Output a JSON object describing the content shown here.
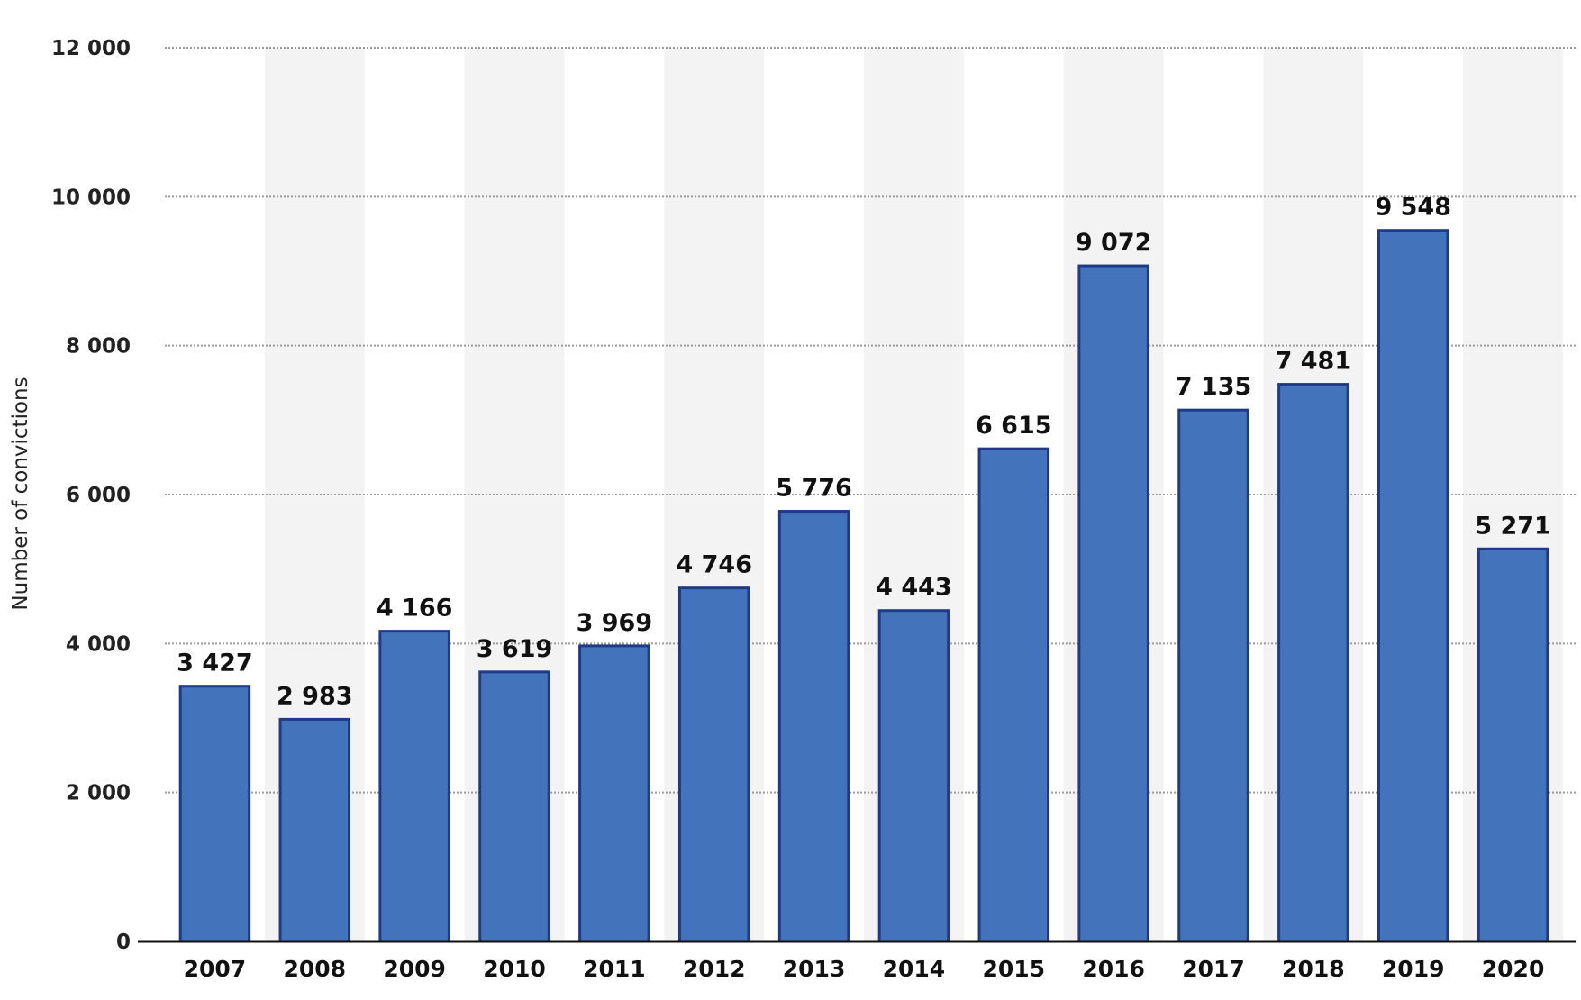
{
  "chart_data": {
    "type": "bar",
    "title": "",
    "xlabel": "",
    "ylabel": "Number of convictions",
    "ylim": [
      0,
      12000
    ],
    "yticks": [
      0,
      2000,
      4000,
      6000,
      8000,
      10000,
      12000
    ],
    "ytick_labels": [
      "0",
      "2 000",
      "4 000",
      "6 000",
      "8 000",
      "10 000",
      "12 000"
    ],
    "categories": [
      "2007",
      "2008",
      "2009",
      "2010",
      "2011",
      "2012",
      "2013",
      "2014",
      "2015",
      "2016",
      "2017",
      "2018",
      "2019",
      "2020"
    ],
    "values": [
      3427,
      2983,
      4166,
      3619,
      3969,
      4746,
      5776,
      4443,
      6615,
      9072,
      7135,
      7481,
      9548,
      5271
    ],
    "value_labels": [
      "3 427",
      "2 983",
      "4 166",
      "3 619",
      "3 969",
      "4 746",
      "5 776",
      "4 443",
      "6 615",
      "9 072",
      "7 135",
      "7 481",
      "9 548",
      "5 271"
    ],
    "grid": true,
    "colors": {
      "bar": "#4374bb",
      "bar_border": "#1f3b86",
      "band": "#f3f3f3",
      "grid": "#9a9a9a",
      "axis": "#111111"
    }
  }
}
